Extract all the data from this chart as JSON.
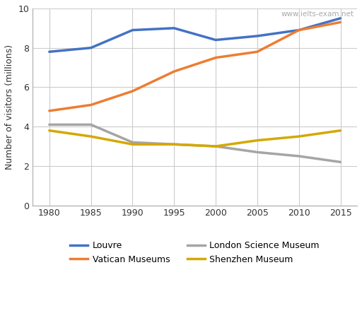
{
  "years": [
    1980,
    1985,
    1990,
    1995,
    2000,
    2005,
    2010,
    2015
  ],
  "series": {
    "Louvre": {
      "values": [
        7.8,
        8.0,
        8.9,
        9.0,
        8.4,
        8.6,
        8.9,
        9.5
      ],
      "color": "#4472C4"
    },
    "Vatican Museums": {
      "values": [
        4.8,
        5.1,
        5.8,
        6.8,
        7.5,
        7.8,
        8.9,
        9.3
      ],
      "color": "#ED7D31"
    },
    "London Science Museum": {
      "values": [
        4.1,
        4.1,
        3.2,
        3.1,
        3.0,
        2.7,
        2.5,
        2.2
      ],
      "color": "#A5A5A5"
    },
    "Shenzhen Museum": {
      "values": [
        3.8,
        3.5,
        3.1,
        3.1,
        3.0,
        3.3,
        3.5,
        3.8
      ],
      "color": "#D4A800"
    }
  },
  "ylabel": "Number of visitors (millions)",
  "ylim": [
    0,
    10
  ],
  "yticks": [
    0,
    2,
    4,
    6,
    8,
    10
  ],
  "xlim": [
    1978,
    2017
  ],
  "xticks": [
    1980,
    1985,
    1990,
    1995,
    2000,
    2005,
    2010,
    2015
  ],
  "watermark": "www.ielts-exam.net",
  "background_color": "#FFFFFF",
  "grid_color": "#CCCCCC",
  "legend_order": [
    "Louvre",
    "Vatican Museums",
    "London Science Museum",
    "Shenzhen Museum"
  ]
}
